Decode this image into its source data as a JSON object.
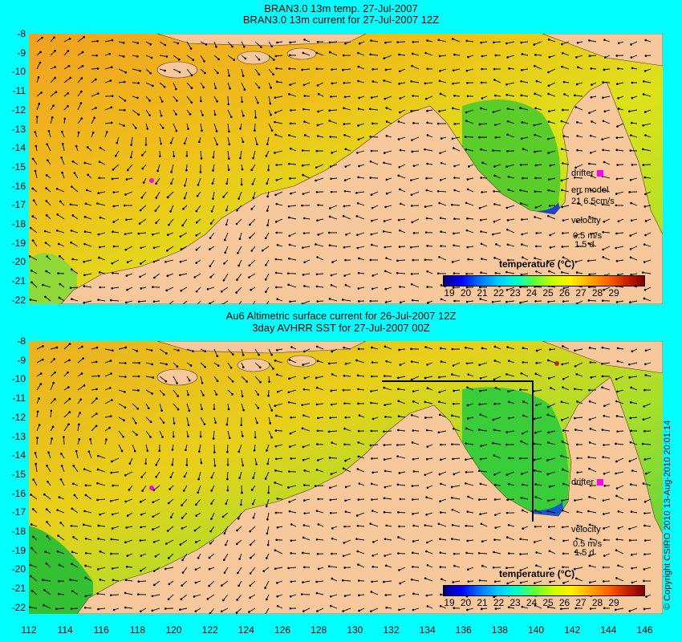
{
  "titles": {
    "top_line1": "BRAN3.0 13m temp. 27-Jul-2007",
    "top_line2": "BRAN3.0 13m current for 27-Jul-2007 12Z",
    "bottom_line1": "Au6 Altimetric surface current for 26-Jul-2007 12Z",
    "bottom_line2": "3day AVHRR SST for 27-Jul-2007 00Z"
  },
  "axes": {
    "y_labels": [
      "-8",
      "-9",
      "-10",
      "-11",
      "-12",
      "-13",
      "-14",
      "-15",
      "-16",
      "-17",
      "-18",
      "-19",
      "-20",
      "-21",
      "-22"
    ],
    "x_labels": [
      "112",
      "114",
      "116",
      "118",
      "120",
      "122",
      "124",
      "126",
      "128",
      "130",
      "132",
      "134",
      "136",
      "138",
      "140",
      "142",
      "144",
      "146"
    ],
    "lat_range": [
      -22.5,
      -8
    ],
    "lon_range": [
      112,
      147
    ]
  },
  "colorbar": {
    "title": "temperature (°C)",
    "ticks": [
      "19",
      "20",
      "21",
      "22",
      "23",
      "24",
      "25",
      "26",
      "27",
      "28",
      "29"
    ]
  },
  "top_panel": {
    "drifter_label": "drifter",
    "err_model_label": "err model",
    "err_model_value": "21  6.5cm/s",
    "velocity_label": "velocity",
    "velocity_scale": "0.5 m/s",
    "velocity_duration": "1.5 d"
  },
  "bottom_panel": {
    "drifter_label": "drifter",
    "velocity_label": "velocity",
    "velocity_scale": "0.5 m/s",
    "velocity_duration": "1.5 d"
  },
  "copyright": "© Copyright CSIRO 2010   13-Aug-2010 20:01:14",
  "colors": {
    "background": "#00ffff",
    "land": "#f7c89b",
    "ocean_warm": "#f2a31a",
    "ocean_mid": "#e6d81a",
    "ocean_cool": "#33cc33",
    "ocean_cold": "#0033cc",
    "drifter": "#ff00ff"
  }
}
